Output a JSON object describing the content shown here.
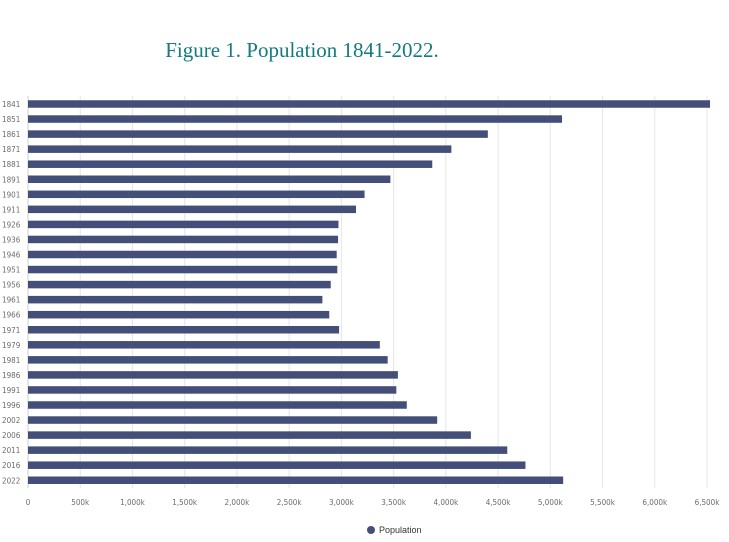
{
  "figure": {
    "title": "Figure 1. Population 1841-2022."
  },
  "chart_data": {
    "type": "bar",
    "orientation": "horizontal",
    "title": "Figure 1. Population 1841-2022.",
    "xlabel": "",
    "ylabel": "",
    "xlim": [
      0,
      6500000
    ],
    "grid": true,
    "legend_position": "bottom",
    "bar_color": "#434f79",
    "categories": [
      "1841",
      "1851",
      "1861",
      "1871",
      "1881",
      "1891",
      "1901",
      "1911",
      "1926",
      "1936",
      "1946",
      "1951",
      "1956",
      "1961",
      "1966",
      "1971",
      "1979",
      "1981",
      "1986",
      "1991",
      "1996",
      "2002",
      "2006",
      "2011",
      "2016",
      "2022"
    ],
    "series": [
      {
        "name": "Population",
        "values": [
          6529000,
          5112000,
          4402000,
          4053000,
          3870000,
          3469000,
          3222000,
          3140000,
          2972000,
          2968000,
          2955000,
          2961000,
          2898000,
          2818000,
          2884000,
          2978000,
          3368000,
          3443000,
          3541000,
          3526000,
          3626000,
          3917000,
          4240000,
          4588000,
          4762000,
          5123000
        ]
      }
    ],
    "x_ticks": [
      {
        "value": 0,
        "label": "0"
      },
      {
        "value": 500000,
        "label": "500k"
      },
      {
        "value": 1000000,
        "label": "1,000k"
      },
      {
        "value": 1500000,
        "label": "1,500k"
      },
      {
        "value": 2000000,
        "label": "2,000k"
      },
      {
        "value": 2500000,
        "label": "2,500k"
      },
      {
        "value": 3000000,
        "label": "3,000k"
      },
      {
        "value": 3500000,
        "label": "3,500k"
      },
      {
        "value": 4000000,
        "label": "4,000k"
      },
      {
        "value": 4500000,
        "label": "4,500k"
      },
      {
        "value": 5000000,
        "label": "5,000k"
      },
      {
        "value": 5500000,
        "label": "5,500k"
      },
      {
        "value": 6000000,
        "label": "6,000k"
      },
      {
        "value": 6500000,
        "label": "6,500k"
      }
    ]
  }
}
